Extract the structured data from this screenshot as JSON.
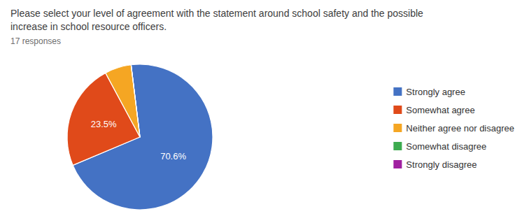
{
  "chart_data": {
    "type": "pie",
    "title": "Please select your level of agreement with the statement around school safety and the possible\nincrease in school resource officers.",
    "subtitle": "17 responses",
    "categories": [
      "Strongly agree",
      "Somewhat agree",
      "Neither agree nor disagree",
      "Somewhat disagree",
      "Strongly disagree"
    ],
    "values": [
      70.6,
      23.5,
      5.9,
      0,
      0
    ],
    "value_labels": [
      "70.6%",
      "23.5%",
      null,
      null,
      null
    ],
    "colors": [
      "#4472c4",
      "#e04a1a",
      "#f5a623",
      "#3dab4f",
      "#a020a0"
    ],
    "data_labels": true,
    "legend": "right"
  }
}
